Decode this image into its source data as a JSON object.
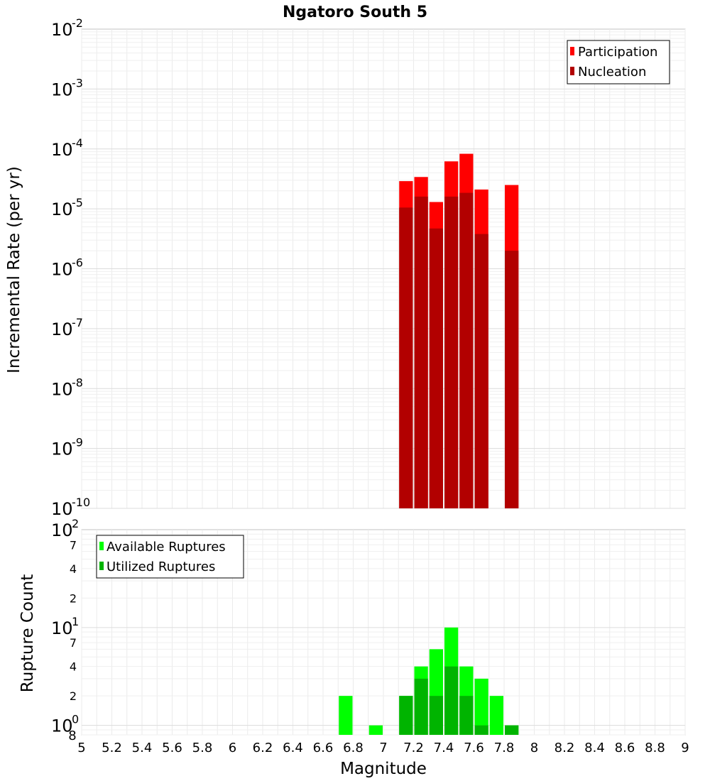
{
  "chart_data": [
    {
      "type": "bar",
      "title": "Ngatoro South 5",
      "ylabel": "Incremental Rate (per yr)",
      "yscale": "log",
      "ylim": [
        1e-10,
        0.01
      ],
      "xlim": [
        5,
        9
      ],
      "y_ticks": [
        {
          "base": "10",
          "exp": "-10",
          "value": 1e-10
        },
        {
          "base": "10",
          "exp": "-9",
          "value": 1e-09
        },
        {
          "base": "10",
          "exp": "-8",
          "value": 1e-08
        },
        {
          "base": "10",
          "exp": "-7",
          "value": 1e-07
        },
        {
          "base": "10",
          "exp": "-6",
          "value": 1e-06
        },
        {
          "base": "10",
          "exp": "-5",
          "value": 1e-05
        },
        {
          "base": "10",
          "exp": "-4",
          "value": 0.0001
        },
        {
          "base": "10",
          "exp": "-3",
          "value": 0.001
        },
        {
          "base": "10",
          "exp": "-2",
          "value": 0.01
        }
      ],
      "legend_position": "top-right",
      "grid": true,
      "x": [
        7.15,
        7.25,
        7.35,
        7.45,
        7.55,
        7.65,
        7.85
      ],
      "series": [
        {
          "name": "Participation",
          "color": "#ff0000",
          "values": [
            2.9e-05,
            3.4e-05,
            1.3e-05,
            6.2e-05,
            8.3e-05,
            2.1e-05,
            2.5e-05
          ]
        },
        {
          "name": "Nucleation",
          "color": "#b20000",
          "values": [
            1.05e-05,
            1.6e-05,
            4.7e-06,
            1.6e-05,
            1.85e-05,
            3.8e-06,
            2e-06
          ]
        }
      ]
    },
    {
      "type": "bar",
      "ylabel": "Rupture Count",
      "xlabel": "Magnitude",
      "yscale": "log",
      "ylim": [
        0.8,
        100
      ],
      "xlim": [
        5,
        9
      ],
      "x_ticks": [
        "5",
        "5.2",
        "5.4",
        "5.6",
        "5.8",
        "6",
        "6.2",
        "6.4",
        "6.6",
        "6.8",
        "7",
        "7.2",
        "7.4",
        "7.6",
        "7.8",
        "8",
        "8.2",
        "8.4",
        "8.6",
        "8.8",
        "9"
      ],
      "y_major_ticks": [
        {
          "base": "10",
          "exp": "0",
          "value": 1
        },
        {
          "base": "10",
          "exp": "1",
          "value": 10
        },
        {
          "base": "10",
          "exp": "2",
          "value": 100
        }
      ],
      "y_minor_ticks": [
        {
          "label": "8",
          "value": 0.8
        },
        {
          "label": "2",
          "value": 2
        },
        {
          "label": "4",
          "value": 4
        },
        {
          "label": "7",
          "value": 7
        },
        {
          "label": "2",
          "value": 20
        },
        {
          "label": "4",
          "value": 40
        },
        {
          "label": "7",
          "value": 70
        }
      ],
      "legend_position": "top-left",
      "grid": true,
      "series": [
        {
          "name": "Available Ruptures",
          "color": "#00ff00",
          "x": [
            6.75,
            6.95,
            7.15,
            7.25,
            7.35,
            7.45,
            7.55,
            7.65,
            7.75,
            7.85
          ],
          "values": [
            2,
            1,
            2,
            4,
            6,
            10,
            4,
            3,
            2,
            1
          ]
        },
        {
          "name": "Utilized Ruptures",
          "color": "#00b400",
          "x": [
            7.15,
            7.25,
            7.35,
            7.45,
            7.55,
            7.65,
            7.85
          ],
          "values": [
            2,
            3,
            2,
            4,
            2,
            1,
            1
          ]
        }
      ]
    }
  ]
}
